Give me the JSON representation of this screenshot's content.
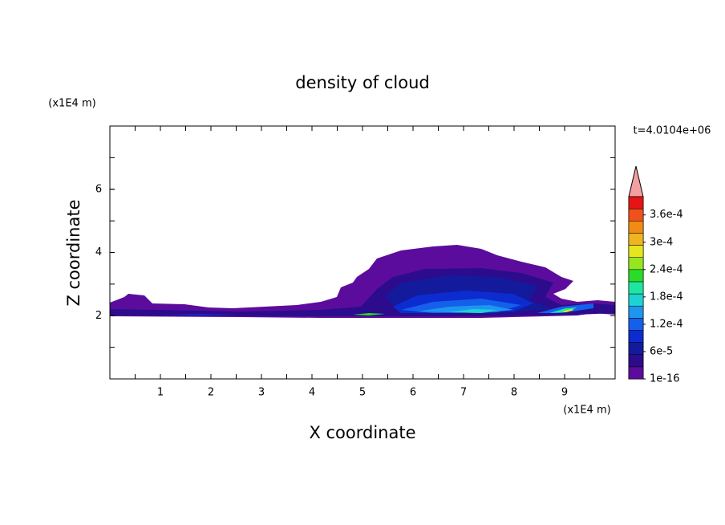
{
  "chart_data": {
    "type": "contour",
    "title": "density of cloud",
    "x_label": "X coordinate",
    "y_label": "Z coordinate",
    "x_unit": "(x1E4 m)",
    "y_unit": "(x1E4 m)",
    "annotation": "t=4.0104e+06",
    "xlim": [
      0,
      10
    ],
    "ylim": [
      0,
      8
    ],
    "xticks": [
      1,
      2,
      3,
      4,
      5,
      6,
      7,
      8,
      9
    ],
    "yticks": [
      2,
      4,
      6
    ],
    "colorbar": {
      "lim": [
        1e-16,
        0.0004
      ],
      "ticks": [
        {
          "value": 1e-16,
          "label": "1e-16"
        },
        {
          "value": 6e-05,
          "label": "6e-5"
        },
        {
          "value": 0.00012,
          "label": "1.2e-4"
        },
        {
          "value": 0.00018,
          "label": "1.8e-4"
        },
        {
          "value": 0.00024,
          "label": "2.4e-4"
        },
        {
          "value": 0.0003,
          "label": "3e-4"
        },
        {
          "value": 0.00036,
          "label": "3.6e-4"
        }
      ],
      "colors": [
        "#5c0c9c",
        "#2c0c8c",
        "#141a9c",
        "#0c2cd0",
        "#1460ea",
        "#1e96f0",
        "#1ed2d2",
        "#1ee6a0",
        "#28dc28",
        "#96e61e",
        "#e6e61e",
        "#f0b41e",
        "#f08c14",
        "#f0501e",
        "#e61414"
      ],
      "over_color": "#f4a0a0"
    }
  }
}
